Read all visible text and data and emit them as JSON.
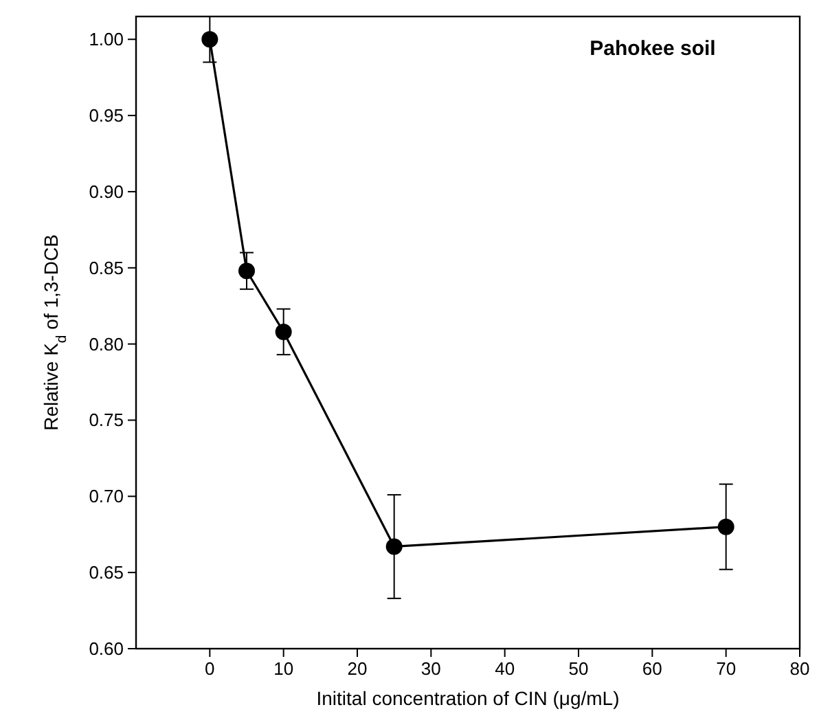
{
  "chart_data": {
    "type": "line",
    "xlabel": "Initital concentration of CIN (μg/mL)",
    "ylabel": "Relative K$_{d}$ of 1,3-DCB",
    "annotations": [
      "Pahokee soil"
    ],
    "x": [
      0,
      5,
      10,
      25,
      70
    ],
    "series": [
      {
        "color": "#000000",
        "values": [
          1.0,
          0.848,
          0.808,
          0.667,
          0.68
        ],
        "errors": [
          0.015,
          0.012,
          0.015,
          0.034,
          0.028
        ]
      }
    ],
    "marker": "circle",
    "line_style": "solid",
    "grid": false,
    "xlim": [
      -10,
      80
    ],
    "xticks": [
      0,
      10,
      20,
      30,
      40,
      50,
      60,
      70,
      80
    ],
    "ylim": [
      0.6,
      1.015
    ],
    "yticks": [
      {
        "value": 0.6,
        "label": "0.60"
      },
      {
        "value": 0.65,
        "label": "0.65"
      },
      {
        "value": 0.7,
        "label": "0.70"
      },
      {
        "value": 0.75,
        "label": "0.75"
      },
      {
        "value": 0.8,
        "label": "0.80"
      },
      {
        "value": 0.85,
        "label": "0.85"
      },
      {
        "value": 0.9,
        "label": "0.90"
      },
      {
        "value": 0.95,
        "label": "0.95"
      },
      {
        "value": 1.0,
        "label": "1.00"
      }
    ]
  }
}
